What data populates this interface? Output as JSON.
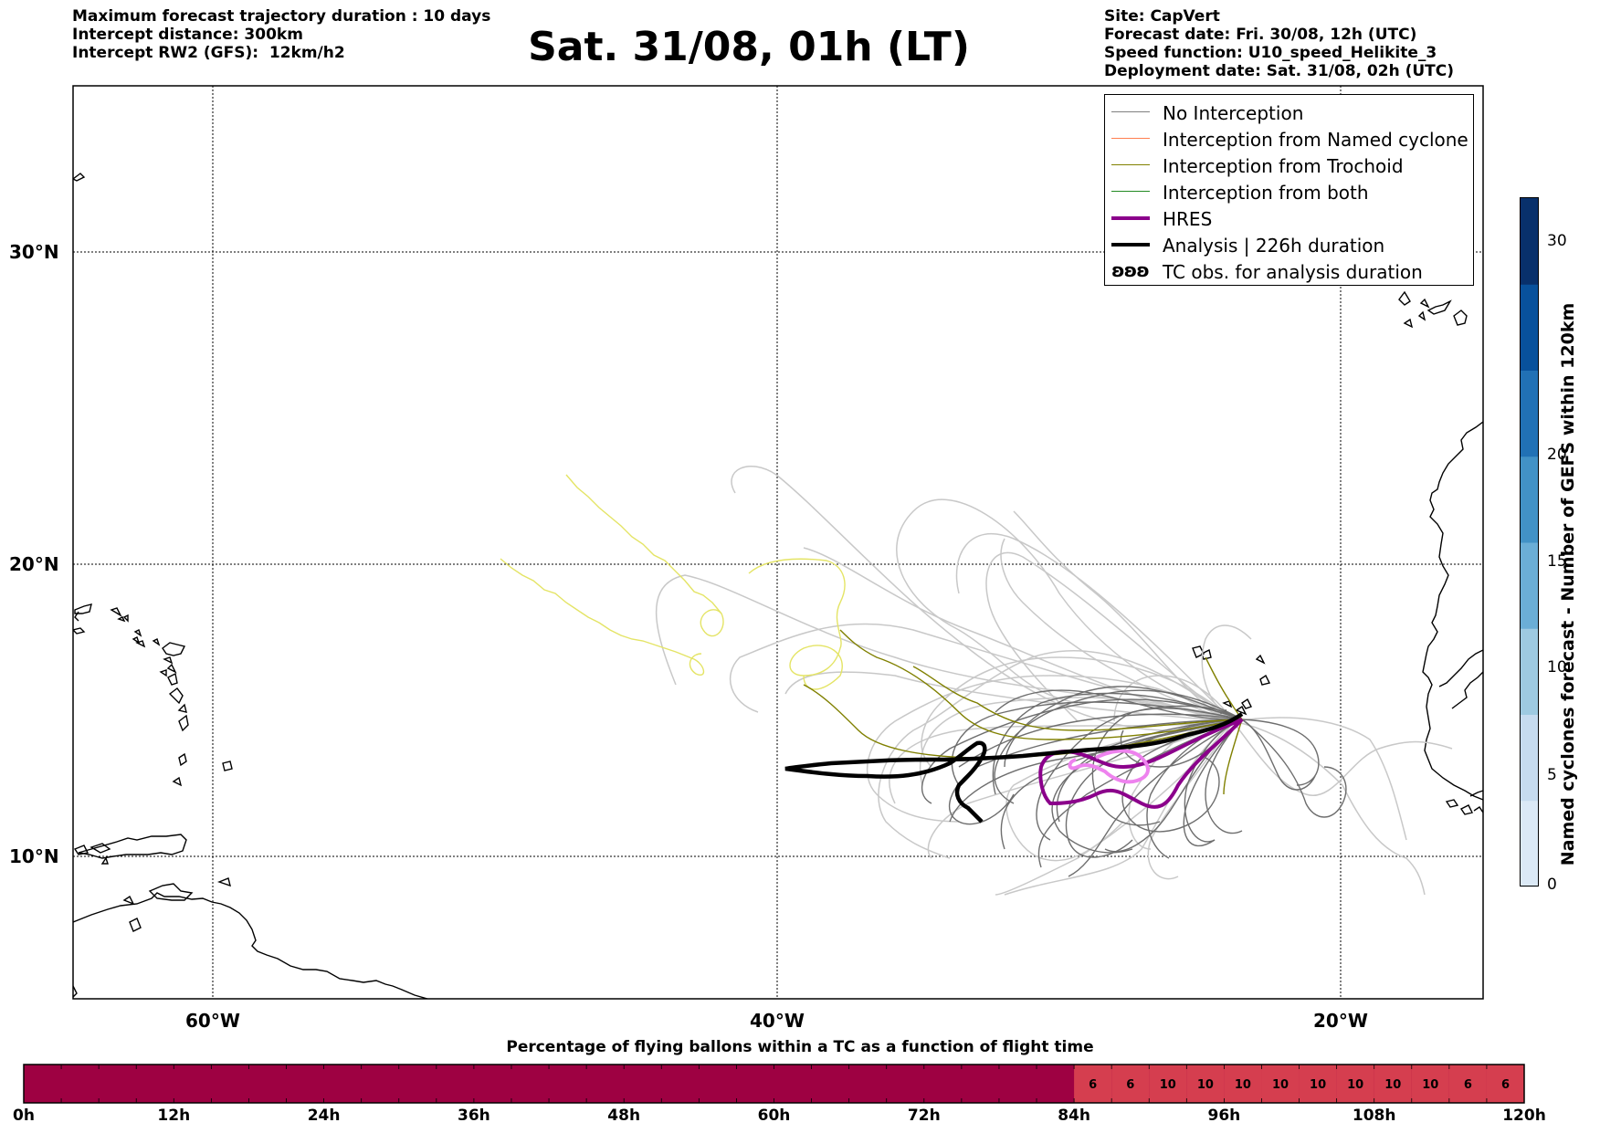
{
  "header_left": {
    "line1": "Maximum forecast trajectory duration : 10 days",
    "line2": "Intercept distance: 300km",
    "line3": "Intercept RW2 (GFS):  12km/h2"
  },
  "title": "Sat. 31/08, 01h (LT)",
  "header_right": {
    "line1": "Site: CapVert",
    "line2": "Forecast date: Fri. 30/08, 12h (UTC)",
    "line3": "Speed function: U10_speed_Helikite_3",
    "line4": "Deployment date: Sat. 31/08, 02h (UTC)"
  },
  "map": {
    "lat_labels": [
      "30°N",
      "20°N",
      "10°N"
    ],
    "lon_labels": [
      "60°W",
      "40°W",
      "20°W"
    ]
  },
  "legend": [
    {
      "label": "No Interception",
      "color": "#808080",
      "style": "thin"
    },
    {
      "label": "Interception from Named cyclone",
      "color": "#ff7f50",
      "style": "thin"
    },
    {
      "label": "Interception from Trochoid",
      "color": "#808000",
      "style": "thin"
    },
    {
      "label": "Interception from both",
      "color": "#228b22",
      "style": "thin"
    },
    {
      "label": "HRES",
      "color": "#8b008b",
      "style": "thick"
    },
    {
      "label": "Analysis | 226h duration",
      "color": "#000000",
      "style": "thick"
    },
    {
      "label": "TC obs. for analysis duration",
      "color": "#000000",
      "style": "symbol",
      "symbol": "ʚʚʚ"
    }
  ],
  "colorbar": {
    "title": "Named cyclones forecast - Number of GEFS within 120km",
    "ticks": [
      "0",
      "5",
      "10",
      "15",
      "20",
      "30"
    ],
    "range": [
      0,
      33
    ],
    "colors": [
      "#dbe9f6",
      "#c6dbef",
      "#9ecae1",
      "#6baed6",
      "#4292c6",
      "#2171b5",
      "#08519c",
      "#08306b"
    ]
  },
  "timebar": {
    "title": "Percentage of flying ballons within a TC as a function of flight time",
    "labels": [
      "0h",
      "12h",
      "24h",
      "36h",
      "48h",
      "60h",
      "72h",
      "84h",
      "96h",
      "108h",
      "120h"
    ],
    "cells": [
      {
        "value": "6"
      },
      {
        "value": "6"
      },
      {
        "value": "10"
      },
      {
        "value": "10"
      },
      {
        "value": "10"
      },
      {
        "value": "10"
      },
      {
        "value": "10"
      },
      {
        "value": "10"
      },
      {
        "value": "10"
      },
      {
        "value": "10"
      },
      {
        "value": "6"
      },
      {
        "value": "6"
      }
    ],
    "base_color": "#9e0142",
    "highlight_color": "#d53e4f"
  }
}
